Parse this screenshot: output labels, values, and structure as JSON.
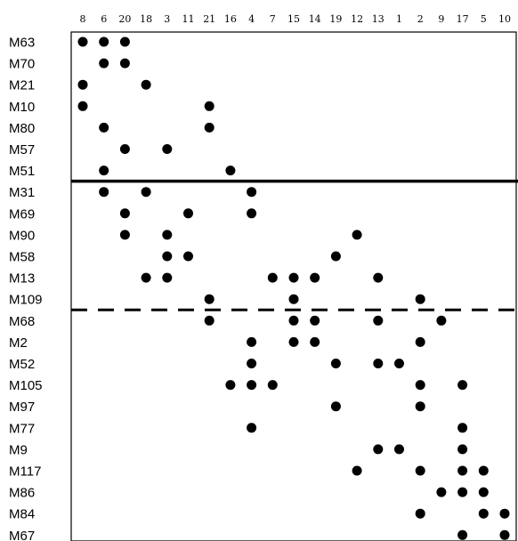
{
  "chart_data": {
    "type": "scatter",
    "columns": [
      "8",
      "6",
      "20",
      "18",
      "3",
      "11",
      "21",
      "16",
      "4",
      "7",
      "15",
      "14",
      "19",
      "12",
      "13",
      "1",
      "2",
      "9",
      "17",
      "5",
      "10"
    ],
    "rows": [
      "M63",
      "M70",
      "M21",
      "M10",
      "M80",
      "M57",
      "M51",
      "M31",
      "M69",
      "M90",
      "M58",
      "M13",
      "M109",
      "M68",
      "M2",
      "M52",
      "M105",
      "M97",
      "M77",
      "M9",
      "M117",
      "M86",
      "M84",
      "M67"
    ],
    "points": [
      {
        "row": "M63",
        "cols": [
          "8",
          "6",
          "20"
        ]
      },
      {
        "row": "M70",
        "cols": [
          "6",
          "20"
        ]
      },
      {
        "row": "M21",
        "cols": [
          "8",
          "18"
        ]
      },
      {
        "row": "M10",
        "cols": [
          "8",
          "21"
        ]
      },
      {
        "row": "M80",
        "cols": [
          "6",
          "21"
        ]
      },
      {
        "row": "M57",
        "cols": [
          "20",
          "3"
        ]
      },
      {
        "row": "M51",
        "cols": [
          "6",
          "16"
        ]
      },
      {
        "row": "M31",
        "cols": [
          "6",
          "18",
          "4"
        ]
      },
      {
        "row": "M69",
        "cols": [
          "20",
          "11",
          "4"
        ]
      },
      {
        "row": "M90",
        "cols": [
          "20",
          "3",
          "12"
        ]
      },
      {
        "row": "M58",
        "cols": [
          "3",
          "11",
          "19"
        ]
      },
      {
        "row": "M13",
        "cols": [
          "18",
          "3",
          "7",
          "15",
          "14",
          "13"
        ]
      },
      {
        "row": "M109",
        "cols": [
          "21",
          "15",
          "2"
        ]
      },
      {
        "row": "M68",
        "cols": [
          "21",
          "15",
          "14",
          "13",
          "9"
        ]
      },
      {
        "row": "M2",
        "cols": [
          "4",
          "15",
          "14",
          "2"
        ]
      },
      {
        "row": "M52",
        "cols": [
          "4",
          "19",
          "13",
          "1"
        ]
      },
      {
        "row": "M105",
        "cols": [
          "16",
          "4",
          "7",
          "2",
          "17"
        ]
      },
      {
        "row": "M97",
        "cols": [
          "19",
          "2"
        ]
      },
      {
        "row": "M77",
        "cols": [
          "4",
          "17"
        ]
      },
      {
        "row": "M9",
        "cols": [
          "13",
          "1",
          "17"
        ]
      },
      {
        "row": "M117",
        "cols": [
          "12",
          "2",
          "17",
          "5"
        ]
      },
      {
        "row": "M86",
        "cols": [
          "9",
          "17",
          "5"
        ]
      },
      {
        "row": "M84",
        "cols": [
          "2",
          "5",
          "10"
        ]
      },
      {
        "row": "M67",
        "cols": [
          "17",
          "10"
        ]
      }
    ],
    "separators": [
      {
        "between": [
          "M51",
          "M31"
        ],
        "style": "solid"
      },
      {
        "between": [
          "M109",
          "M68"
        ],
        "style": "dashed"
      }
    ],
    "grid": false,
    "legend": "none"
  }
}
